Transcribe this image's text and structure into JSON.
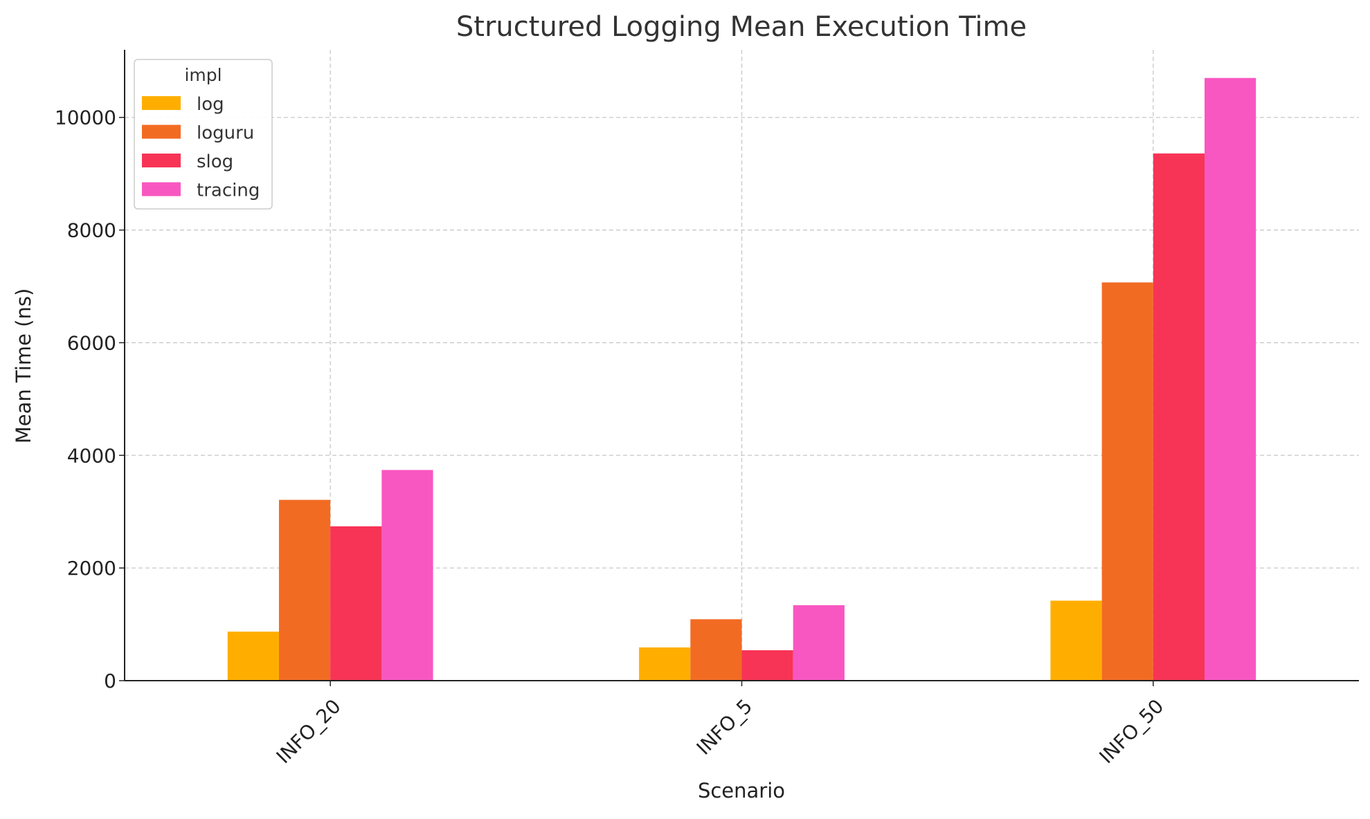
{
  "chart_data": {
    "type": "bar",
    "title": "Structured Logging Mean Execution Time",
    "xlabel": "Scenario",
    "ylabel": "Mean Time (ns)",
    "categories": [
      "INFO_20",
      "INFO_5",
      "INFO_50"
    ],
    "ylim": [
      0,
      11200
    ],
    "yticks": [
      0,
      2000,
      4000,
      6000,
      8000,
      10000
    ],
    "grid": true,
    "legend": {
      "title": "impl",
      "placement": "top-left"
    },
    "series": [
      {
        "name": "log",
        "color": "#FFAE00",
        "values": [
          870,
          590,
          1420
        ]
      },
      {
        "name": "loguru",
        "color": "#F26B23",
        "values": [
          3210,
          1090,
          7070
        ]
      },
      {
        "name": "slog",
        "color": "#F73456",
        "values": [
          2740,
          540,
          9360
        ]
      },
      {
        "name": "tracing",
        "color": "#F857C1",
        "values": [
          3740,
          1340,
          10700
        ]
      }
    ]
  }
}
